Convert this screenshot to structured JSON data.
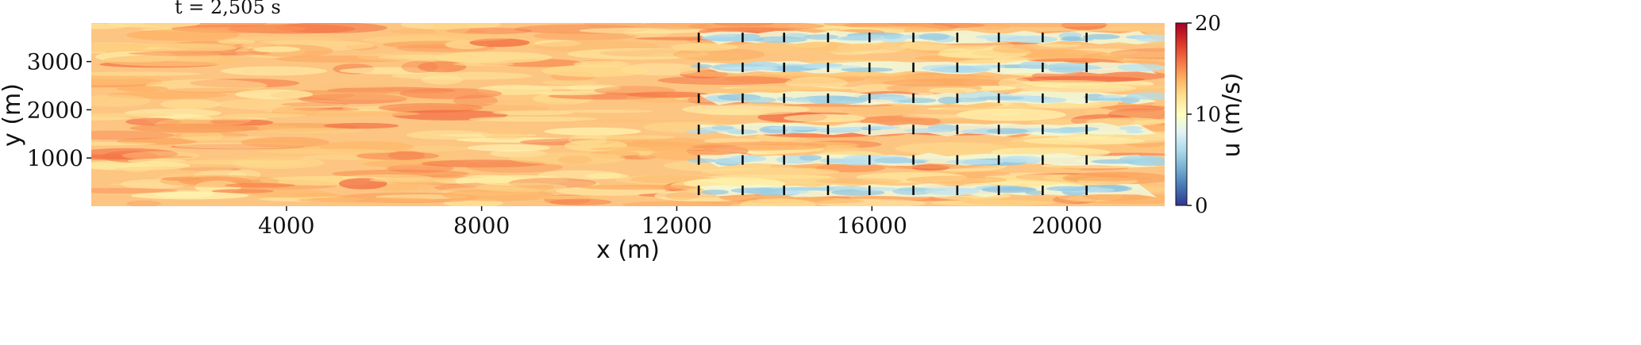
{
  "chart_data": {
    "type": "heatmap",
    "title": "t = 2,505 s",
    "xlabel": "x (m)",
    "ylabel": "y (m)",
    "xlim": [
      0,
      22000
    ],
    "ylim": [
      0,
      3800
    ],
    "xticks": [
      4000,
      8000,
      12000,
      16000,
      20000
    ],
    "yticks": [
      1000,
      2000,
      3000
    ],
    "colorbar": {
      "label": "u (m/s)",
      "range": [
        0,
        20
      ],
      "ticks": [
        0,
        10,
        20
      ],
      "colormap": "RdYlBu_r",
      "colors": [
        "#313695",
        "#4575b4",
        "#74add1",
        "#abd9e9",
        "#e0f3f8",
        "#ffffbf",
        "#fee090",
        "#fdae61",
        "#f46d43",
        "#d73027",
        "#a50026"
      ]
    },
    "field": {
      "ambient_speed_m_s": 13,
      "wake_speed_m_s": 6
    },
    "turbines": {
      "x": [
        12450,
        13350,
        14200,
        15100,
        15950,
        16850,
        17750,
        18600,
        19500,
        20400
      ],
      "y": [
        3500,
        2880,
        2240,
        1590,
        960,
        330
      ]
    },
    "grid": false,
    "legend": "none"
  }
}
